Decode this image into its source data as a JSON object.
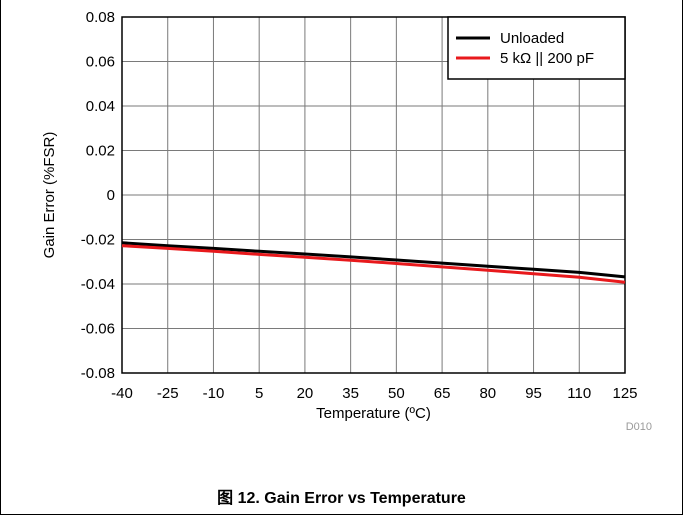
{
  "caption": "图 12. Gain Error vs Temperature",
  "code_label": "D010",
  "chart_data": {
    "type": "line",
    "title": "",
    "xlabel": "Temperature (ºC)",
    "ylabel": "Gain Error (%FSR)",
    "xlim": [
      -40,
      125
    ],
    "ylim": [
      -0.08,
      0.08
    ],
    "x_ticks": [
      -40,
      -25,
      -10,
      5,
      20,
      35,
      50,
      65,
      80,
      95,
      110,
      125
    ],
    "x_tick_labels": [
      "-40",
      "-25",
      "-10",
      "5",
      "20",
      "35",
      "50",
      "65",
      "80",
      "95",
      "110",
      "125"
    ],
    "y_ticks": [
      -0.08,
      -0.06,
      -0.04,
      -0.02,
      0,
      0.02,
      0.04,
      0.06,
      0.08
    ],
    "y_tick_labels": [
      "-0.08",
      "-0.06",
      "-0.04",
      "-0.02",
      "0",
      "0.02",
      "0.04",
      "0.06",
      "0.08"
    ],
    "grid": true,
    "legend_position": "top-right",
    "series": [
      {
        "name": "Unloaded",
        "color": "#000000",
        "x": [
          -40,
          -25,
          -10,
          5,
          20,
          35,
          50,
          65,
          80,
          95,
          110,
          125
        ],
        "y": [
          -0.0215,
          -0.0228,
          -0.024,
          -0.0253,
          -0.0265,
          -0.0278,
          -0.0292,
          -0.0306,
          -0.032,
          -0.0334,
          -0.0348,
          -0.0368
        ]
      },
      {
        "name": "5 kΩ || 200 pF",
        "color": "#e8191c",
        "x": [
          -40,
          -25,
          -10,
          5,
          20,
          35,
          50,
          65,
          80,
          95,
          110,
          125
        ],
        "y": [
          -0.0228,
          -0.024,
          -0.0253,
          -0.0267,
          -0.028,
          -0.0293,
          -0.0308,
          -0.0323,
          -0.0338,
          -0.0354,
          -0.037,
          -0.0392
        ]
      }
    ]
  }
}
